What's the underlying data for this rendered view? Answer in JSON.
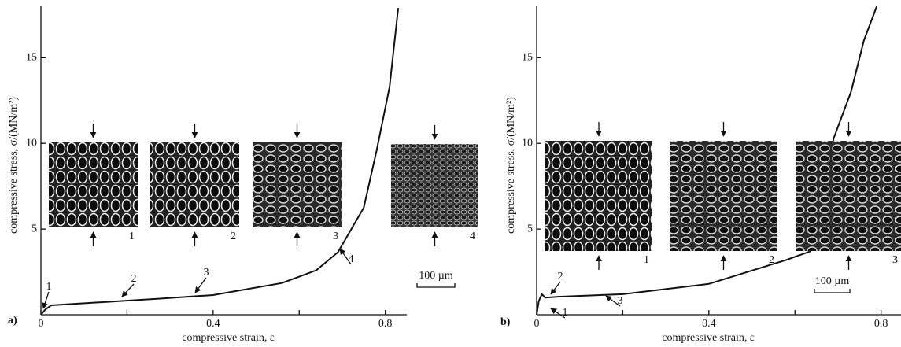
{
  "chart_data": [
    {
      "type": "line",
      "panel_label": "a)",
      "x_label": "compressive strain, ε",
      "y_label": "compressive stress, σ/(MN/m²)",
      "x": [
        0,
        0.01,
        0.024,
        0.09,
        0.27,
        0.4,
        0.56,
        0.64,
        0.69,
        0.75,
        0.78,
        0.81,
        0.83
      ],
      "values": [
        0,
        0.3,
        0.55,
        0.65,
        0.93,
        1.15,
        1.85,
        2.6,
        3.65,
        6.25,
        9.6,
        13.3,
        17.9
      ],
      "color": "#111111",
      "xlim": [
        0,
        0.85
      ],
      "ylim": [
        0,
        18
      ],
      "xticks": [
        0,
        0.4,
        0.8
      ],
      "minor_xticks": [
        0.2,
        0.6
      ],
      "yticks": [
        5,
        10,
        15
      ],
      "curve_labels": [
        "1",
        "2",
        "3",
        "4"
      ],
      "inset_labels": [
        "1",
        "2",
        "3",
        "4"
      ],
      "scale_bar": "100 µm"
    },
    {
      "type": "line",
      "panel_label": "b)",
      "x_label": "compressive strain, ε",
      "y_label": "compressive stress, σ/(MN/m²)",
      "x": [
        0,
        0.005,
        0.012,
        0.02,
        0.05,
        0.2,
        0.4,
        0.58,
        0.636,
        0.69,
        0.73,
        0.76,
        0.79
      ],
      "values": [
        0,
        0.8,
        1.2,
        1.0,
        1.05,
        1.2,
        1.8,
        3.2,
        3.7,
        10.3,
        13,
        16,
        18
      ],
      "color": "#111111",
      "xlim": [
        0,
        0.85
      ],
      "ylim": [
        0,
        18
      ],
      "xticks": [
        0,
        0.4,
        0.8
      ],
      "minor_xticks": [
        0.2,
        0.6
      ],
      "yticks": [
        5,
        10,
        15
      ],
      "curve_labels": [
        "1",
        "2",
        "3"
      ],
      "inset_labels": [
        "1",
        "2",
        "3"
      ],
      "scale_bar": "100 µm"
    }
  ]
}
